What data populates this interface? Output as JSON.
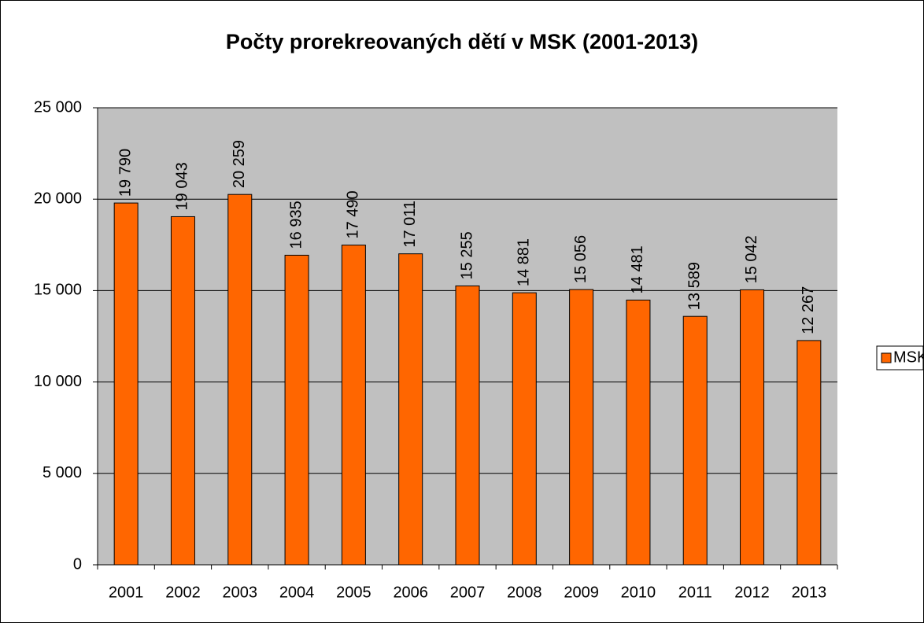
{
  "chart_data": {
    "type": "bar",
    "title": "Počty prorekreovaných dětí v MSK (2001-2013)",
    "categories": [
      "2001",
      "2002",
      "2003",
      "2004",
      "2005",
      "2006",
      "2007",
      "2008",
      "2009",
      "2010",
      "2011",
      "2012",
      "2013"
    ],
    "series": [
      {
        "name": "MSK",
        "color": "#ff6600",
        "values": [
          19790,
          19043,
          20259,
          16935,
          17490,
          17011,
          15255,
          14881,
          15056,
          14481,
          13589,
          15042,
          12267
        ],
        "value_labels": [
          "19 790",
          "19 043",
          "20 259",
          "16 935",
          "17 490",
          "17 011",
          "15 255",
          "14 881",
          "15 056",
          "14 481",
          "13 589",
          "15 042",
          "12 267"
        ]
      }
    ],
    "ylim": [
      0,
      25000
    ],
    "yticks": [
      {
        "value": 0,
        "label": "0"
      },
      {
        "value": 5000,
        "label": "5 000"
      },
      {
        "value": 10000,
        "label": "10 000"
      },
      {
        "value": 15000,
        "label": "15 000"
      },
      {
        "value": 20000,
        "label": "20 000"
      },
      {
        "value": 25000,
        "label": "25 000"
      }
    ],
    "grid": true,
    "legend": "right"
  }
}
